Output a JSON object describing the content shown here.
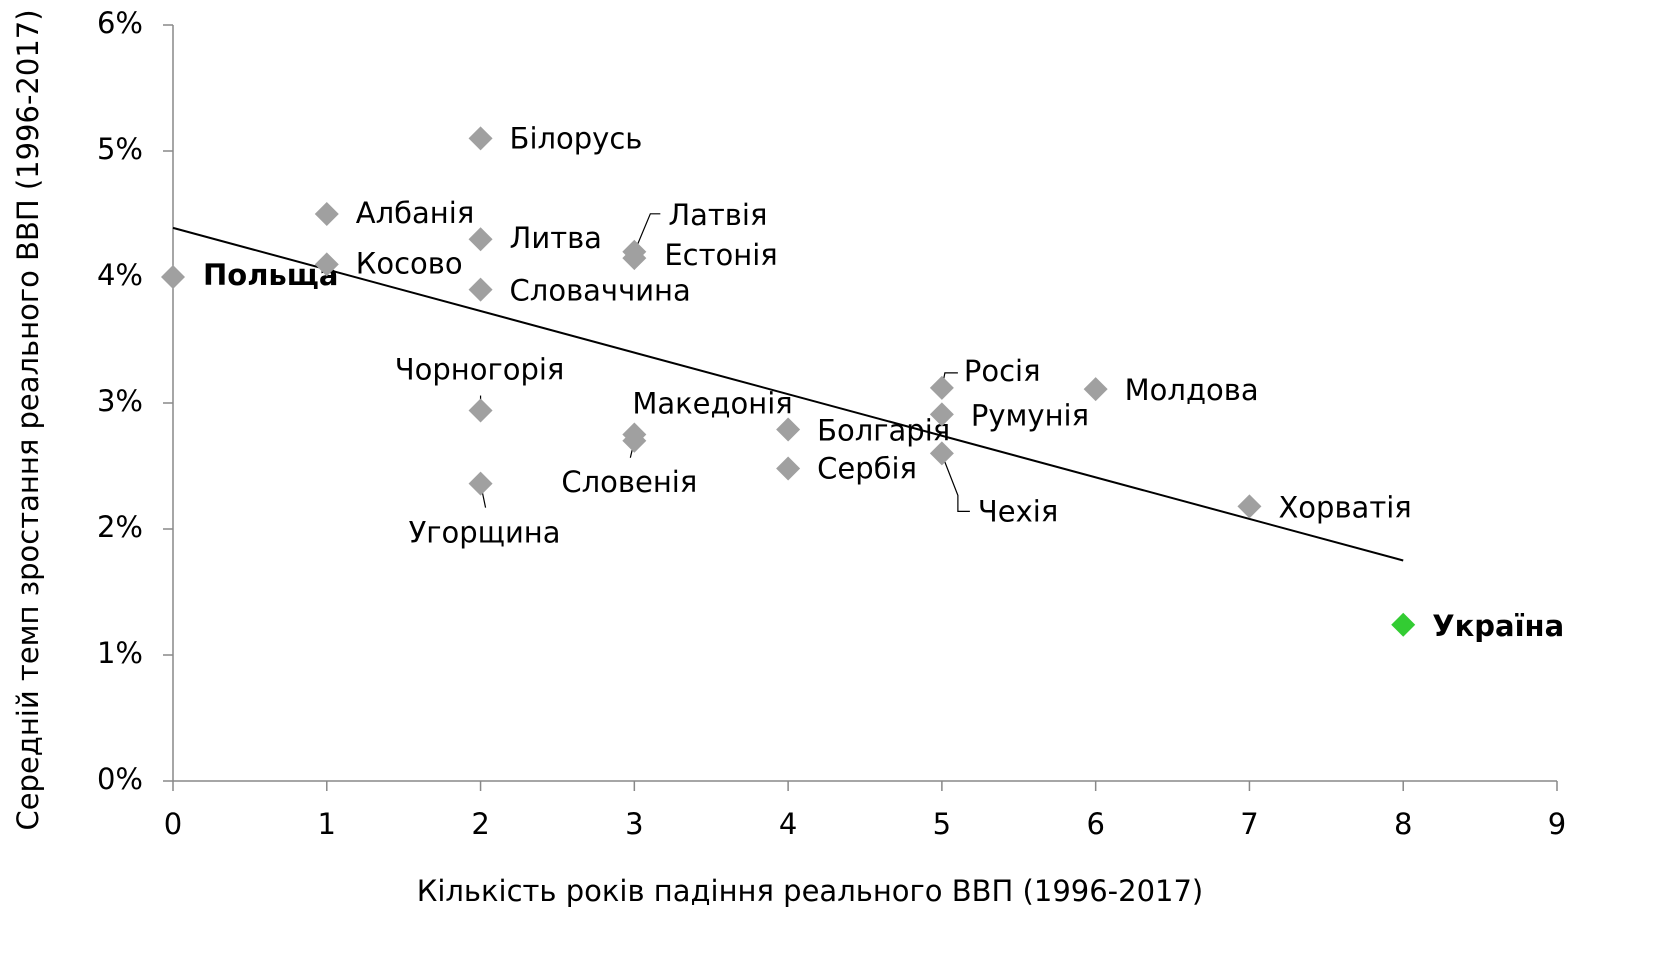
{
  "chart_data": {
    "type": "scatter",
    "xlabel": "Кількість років падіння реального ВВП (1996-2017)",
    "ylabel": "Середній темп зростання реального ВВП (1996-2017)",
    "xlim": [
      0,
      9
    ],
    "ylim": [
      0,
      6
    ],
    "xticks": [
      0,
      1,
      2,
      3,
      4,
      5,
      6,
      7,
      8,
      9
    ],
    "yticks": [
      {
        "value": 0,
        "label": "0%"
      },
      {
        "value": 1,
        "label": "1%"
      },
      {
        "value": 2,
        "label": "2%"
      },
      {
        "value": 3,
        "label": "3%"
      },
      {
        "value": 4,
        "label": "4%"
      },
      {
        "value": 5,
        "label": "5%"
      },
      {
        "value": 6,
        "label": "6%"
      }
    ],
    "point_labels": [
      "Польща",
      "Албанія",
      "Косово",
      "Білорусь",
      "Литва",
      "Словаччина",
      "Чорногорія",
      "Угорщина",
      "Латвія",
      "Естонія",
      "Македонія",
      "Словенія",
      "Болгарія",
      "Сербія",
      "Росія",
      "Румунія",
      "Чехія",
      "Молдова",
      "Хорватія",
      "Україна"
    ],
    "x": [
      0,
      1,
      1,
      2,
      2,
      2,
      2,
      2,
      3,
      3,
      3,
      3,
      4,
      4,
      5,
      5,
      5,
      6,
      7,
      8
    ],
    "values": [
      4.0,
      4.5,
      4.1,
      5.1,
      4.3,
      3.9,
      2.94,
      2.36,
      4.2,
      4.15,
      2.75,
      2.7,
      2.79,
      2.48,
      3.12,
      2.91,
      2.6,
      3.11,
      2.18,
      1.24
    ],
    "colors": [
      "#a0a0a0",
      "#a0a0a0",
      "#a0a0a0",
      "#a0a0a0",
      "#a0a0a0",
      "#a0a0a0",
      "#a0a0a0",
      "#a0a0a0",
      "#a0a0a0",
      "#a0a0a0",
      "#a0a0a0",
      "#a0a0a0",
      "#a0a0a0",
      "#a0a0a0",
      "#a0a0a0",
      "#a0a0a0",
      "#a0a0a0",
      "#a0a0a0",
      "#a0a0a0",
      "#33cc33"
    ],
    "bold": [
      true,
      false,
      false,
      false,
      false,
      false,
      false,
      false,
      false,
      false,
      false,
      false,
      false,
      false,
      false,
      false,
      false,
      false,
      false,
      true
    ],
    "trendline": {
      "x": [
        0,
        8
      ],
      "values": [
        4.39,
        1.75
      ],
      "color": "#000000"
    }
  }
}
